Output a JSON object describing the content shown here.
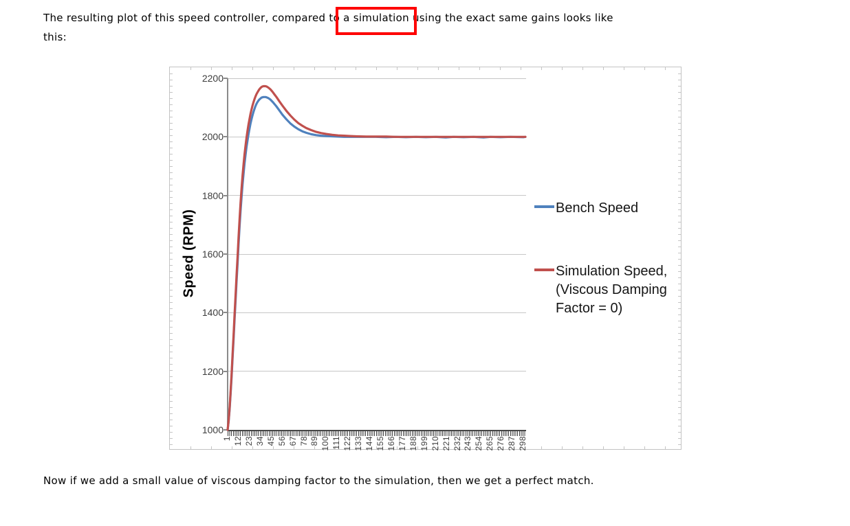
{
  "page": {
    "paragraph_top": {
      "before": "The resulting plot of this speed controller, compared to ",
      "boxed": "a simulation",
      "after": " using the exact same gains looks like",
      "line2": "this:"
    },
    "paragraph_bottom": "Now if we add a small value of viscous damping factor to the simulation, then we get a perfect match."
  },
  "colors": {
    "annotation_box": "#FE0000",
    "bench_series": "#4F81BD",
    "simulation_series": "#C0504D",
    "gridline": "#C6C6C6",
    "axis_line": "#8A8A8A",
    "chart_frame_border": "#C3C3C3"
  },
  "chart_data": {
    "type": "line",
    "title": "",
    "xlabel": "",
    "ylabel": "Speed (RPM)",
    "ylim": [
      1000,
      2200
    ],
    "yticks": [
      1000,
      1200,
      1400,
      1600,
      1800,
      2000,
      2200
    ],
    "xlim": [
      1,
      300
    ],
    "xtick_labels": [
      "1",
      "12",
      "23",
      "34",
      "45",
      "56",
      "67",
      "78",
      "89",
      "100",
      "111",
      "122",
      "133",
      "144",
      "155",
      "166",
      "177",
      "188",
      "199",
      "210",
      "221",
      "232",
      "243",
      "254",
      "265",
      "276",
      "287",
      "298"
    ],
    "grid": "horizontal-major",
    "legend_position": "right",
    "legend": [
      {
        "name": "Bench Speed",
        "color": "#4F81BD",
        "label_lines": [
          "Bench Speed"
        ]
      },
      {
        "name": "Simulation Speed, (Viscous Damping Factor = 0)",
        "color": "#C0504D",
        "label_lines": [
          "Simulation Speed,",
          "(Viscous Damping",
          "Factor = 0)"
        ]
      }
    ],
    "series": [
      {
        "name": "Bench Speed",
        "color": "#4F81BD",
        "points": [
          [
            1,
            1000
          ],
          [
            2,
            1028
          ],
          [
            3,
            1070
          ],
          [
            4,
            1122
          ],
          [
            5,
            1182
          ],
          [
            6,
            1246
          ],
          [
            7,
            1312
          ],
          [
            8,
            1378
          ],
          [
            9,
            1444
          ],
          [
            10,
            1508
          ],
          [
            11,
            1570
          ],
          [
            12,
            1635
          ],
          [
            13,
            1696
          ],
          [
            14,
            1748
          ],
          [
            15,
            1796
          ],
          [
            16,
            1838
          ],
          [
            17,
            1876
          ],
          [
            18,
            1910
          ],
          [
            19,
            1940
          ],
          [
            20,
            1966
          ],
          [
            21,
            1989
          ],
          [
            22,
            2010
          ],
          [
            23,
            2029
          ],
          [
            24,
            2046
          ],
          [
            25,
            2061
          ],
          [
            26,
            2074
          ],
          [
            27,
            2086
          ],
          [
            28,
            2096
          ],
          [
            29,
            2105
          ],
          [
            30,
            2113
          ],
          [
            31,
            2119
          ],
          [
            32,
            2124
          ],
          [
            33,
            2128
          ],
          [
            34,
            2131
          ],
          [
            35,
            2134
          ],
          [
            36,
            2135
          ],
          [
            37,
            2136
          ],
          [
            38,
            2136
          ],
          [
            39,
            2136
          ],
          [
            40,
            2135
          ],
          [
            42,
            2132
          ],
          [
            44,
            2127
          ],
          [
            46,
            2120
          ],
          [
            48,
            2112
          ],
          [
            50,
            2104
          ],
          [
            53,
            2090
          ],
          [
            56,
            2076
          ],
          [
            60,
            2060
          ],
          [
            64,
            2046
          ],
          [
            68,
            2035
          ],
          [
            72,
            2026
          ],
          [
            76,
            2019
          ],
          [
            80,
            2014
          ],
          [
            85,
            2009
          ],
          [
            90,
            2006
          ],
          [
            95,
            2004
          ],
          [
            100,
            2003
          ],
          [
            106,
            2002
          ],
          [
            112,
            2001
          ],
          [
            118,
            2000
          ],
          [
            124,
            2000
          ],
          [
            130,
            2000
          ],
          [
            140,
            2000
          ],
          [
            150,
            2000
          ],
          [
            160,
            1999
          ],
          [
            170,
            2000
          ],
          [
            180,
            1999
          ],
          [
            190,
            2000
          ],
          [
            200,
            1999
          ],
          [
            210,
            2000
          ],
          [
            220,
            1998
          ],
          [
            228,
            2000
          ],
          [
            238,
            1999
          ],
          [
            248,
            2000
          ],
          [
            258,
            1998
          ],
          [
            265,
            2000
          ],
          [
            275,
            1999
          ],
          [
            285,
            2000
          ],
          [
            298,
            1999
          ],
          [
            300,
            2000
          ]
        ]
      },
      {
        "name": "Simulation Speed, (Viscous Damping Factor = 0)",
        "color": "#C0504D",
        "points": [
          [
            1,
            1000
          ],
          [
            2,
            1030
          ],
          [
            3,
            1075
          ],
          [
            4,
            1130
          ],
          [
            5,
            1192
          ],
          [
            6,
            1258
          ],
          [
            7,
            1326
          ],
          [
            8,
            1394
          ],
          [
            9,
            1462
          ],
          [
            10,
            1528
          ],
          [
            11,
            1592
          ],
          [
            12,
            1658
          ],
          [
            13,
            1720
          ],
          [
            14,
            1775
          ],
          [
            15,
            1825
          ],
          [
            16,
            1868
          ],
          [
            17,
            1907
          ],
          [
            18,
            1941
          ],
          [
            19,
            1971
          ],
          [
            20,
            1998
          ],
          [
            21,
            2022
          ],
          [
            22,
            2043
          ],
          [
            23,
            2062
          ],
          [
            24,
            2079
          ],
          [
            25,
            2094
          ],
          [
            26,
            2107
          ],
          [
            27,
            2119
          ],
          [
            28,
            2129
          ],
          [
            29,
            2138
          ],
          [
            30,
            2146
          ],
          [
            31,
            2152
          ],
          [
            32,
            2158
          ],
          [
            33,
            2163
          ],
          [
            34,
            2167
          ],
          [
            35,
            2170
          ],
          [
            36,
            2172
          ],
          [
            37,
            2173
          ],
          [
            38,
            2173
          ],
          [
            39,
            2173
          ],
          [
            40,
            2172
          ],
          [
            42,
            2168
          ],
          [
            44,
            2162
          ],
          [
            46,
            2154
          ],
          [
            48,
            2145
          ],
          [
            50,
            2136
          ],
          [
            53,
            2121
          ],
          [
            56,
            2107
          ],
          [
            60,
            2089
          ],
          [
            64,
            2073
          ],
          [
            68,
            2059
          ],
          [
            72,
            2047
          ],
          [
            76,
            2038
          ],
          [
            80,
            2030
          ],
          [
            85,
            2023
          ],
          [
            90,
            2017
          ],
          [
            95,
            2013
          ],
          [
            100,
            2010
          ],
          [
            106,
            2007
          ],
          [
            112,
            2005
          ],
          [
            118,
            2004
          ],
          [
            124,
            2003
          ],
          [
            130,
            2002
          ],
          [
            140,
            2001
          ],
          [
            150,
            2001
          ],
          [
            160,
            2001
          ],
          [
            170,
            2000
          ],
          [
            180,
            2000
          ],
          [
            200,
            2000
          ],
          [
            220,
            2000
          ],
          [
            240,
            2000
          ],
          [
            260,
            2000
          ],
          [
            280,
            2000
          ],
          [
            300,
            2000
          ]
        ]
      }
    ]
  }
}
